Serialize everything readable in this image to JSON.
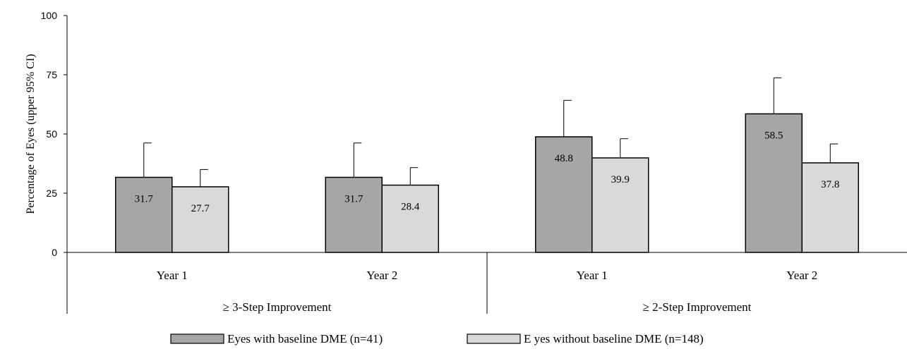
{
  "chart_data": {
    "type": "bar",
    "ylabel": "Percentage of Eyes (upper 95% CI)",
    "xlabel": "",
    "title": "",
    "ylim": [
      0,
      100
    ],
    "yticks": [
      "0",
      "25",
      "50",
      "75",
      "100"
    ],
    "grid": false,
    "legend_position": "bottom",
    "groups": [
      {
        "label": "≥ 3-Step Improvement",
        "categories": [
          "Year 1",
          "Year 2"
        ]
      },
      {
        "label": "≥ 2-Step Improvement",
        "categories": [
          "Year 1",
          "Year 2"
        ]
      }
    ],
    "categories": [
      "Year 1",
      "Year 2",
      "Year 1",
      "Year 2"
    ],
    "series": [
      {
        "name": "Eyes with baseline DME (n=41)",
        "color": "#a6a6a6",
        "values": [
          31.7,
          31.7,
          48.8,
          58.5
        ],
        "value_labels": [
          "31.7",
          "31.7",
          "48.8",
          "58.5"
        ],
        "upper_ci": [
          46.2,
          46.2,
          64.2,
          73.7
        ]
      },
      {
        "name": "Eyes without baseline DME (n=148)",
        "legend_text": "E yes without baseline DME (n=148)",
        "color": "#d9d9d9",
        "values": [
          27.7,
          28.4,
          39.9,
          37.8
        ],
        "value_labels": [
          "27.7",
          "28.4",
          "39.9",
          "37.8"
        ],
        "upper_ci": [
          35.0,
          35.8,
          48.0,
          45.8
        ]
      }
    ]
  }
}
